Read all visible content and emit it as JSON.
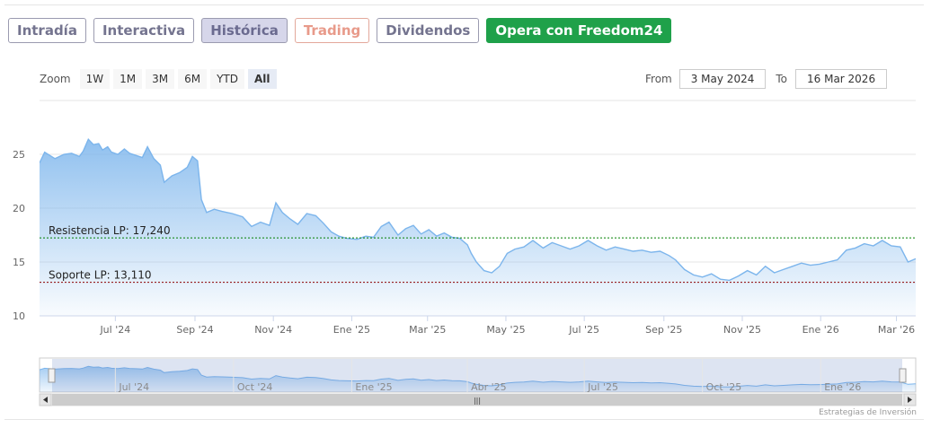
{
  "tabs": [
    {
      "label": "Intradía"
    },
    {
      "label": "Interactiva"
    },
    {
      "label": "Histórica",
      "active": true
    },
    {
      "label": "Trading"
    },
    {
      "label": "Dividendos"
    },
    {
      "label": "Opera con Freedom24"
    }
  ],
  "zoom": {
    "label": "Zoom",
    "buttons": [
      "1W",
      "1M",
      "3M",
      "6M",
      "YTD",
      "All"
    ],
    "selected": "All"
  },
  "range": {
    "from_label": "From",
    "from_value": "3 May 2024",
    "to_label": "To",
    "to_value": "16 Mar 2026"
  },
  "credit": "Estrategias de Inversión",
  "colors": {
    "line": "#7cb5ec",
    "resistance": "#008000",
    "support": "#8b0000",
    "cta": "#1fa14a",
    "tab_active_bg": "#d6d6ea"
  },
  "chart_data": {
    "type": "area",
    "y_ticks": [
      "10",
      "15",
      "20",
      "25"
    ],
    "ylim": [
      10,
      30
    ],
    "x_tick_labels": [
      "Jul '24",
      "Sep '24",
      "Nov '24",
      "Ene '25",
      "Mar '25",
      "May '25",
      "Jul '25",
      "Sep '25",
      "Nov '25",
      "Ene '26",
      "Mar '26"
    ],
    "x_tick_dates": [
      "2024-07-01",
      "2024-09-01",
      "2024-11-01",
      "2025-01-01",
      "2025-03-01",
      "2025-05-01",
      "2025-07-01",
      "2025-09-01",
      "2025-11-01",
      "2026-01-01",
      "2026-03-01"
    ],
    "xlim": [
      "2024-05-03",
      "2026-03-16"
    ],
    "series": [
      {
        "x": [
          "2024-05-03",
          "2024-05-07",
          "2024-05-15",
          "2024-05-22",
          "2024-05-28",
          "2024-06-03",
          "2024-06-06",
          "2024-06-10",
          "2024-06-14",
          "2024-06-18",
          "2024-06-21",
          "2024-06-25",
          "2024-06-28",
          "2024-07-03",
          "2024-07-08",
          "2024-07-12",
          "2024-07-17",
          "2024-07-22",
          "2024-07-26",
          "2024-07-31",
          "2024-08-05",
          "2024-08-08",
          "2024-08-14",
          "2024-08-20",
          "2024-08-26",
          "2024-08-30",
          "2024-09-03",
          "2024-09-06",
          "2024-09-10",
          "2024-09-16",
          "2024-09-22",
          "2024-09-30",
          "2024-10-08",
          "2024-10-15",
          "2024-10-22",
          "2024-10-29",
          "2024-11-03",
          "2024-11-08",
          "2024-11-14",
          "2024-11-20",
          "2024-11-27",
          "2024-12-04",
          "2024-12-10",
          "2024-12-16",
          "2024-12-22",
          "2024-12-28",
          "2025-01-05",
          "2025-01-12",
          "2025-01-18",
          "2025-01-24",
          "2025-01-30",
          "2025-02-06",
          "2025-02-12",
          "2025-02-18",
          "2025-02-24",
          "2025-03-02",
          "2025-03-08",
          "2025-03-14",
          "2025-03-20",
          "2025-03-26",
          "2025-04-01",
          "2025-04-04",
          "2025-04-08",
          "2025-04-14",
          "2025-04-20",
          "2025-04-26",
          "2025-05-02",
          "2025-05-08",
          "2025-05-15",
          "2025-05-22",
          "2025-05-30",
          "2025-06-06",
          "2025-06-13",
          "2025-06-20",
          "2025-06-27",
          "2025-07-04",
          "2025-07-11",
          "2025-07-18",
          "2025-07-25",
          "2025-08-01",
          "2025-08-08",
          "2025-08-15",
          "2025-08-22",
          "2025-08-29",
          "2025-09-05",
          "2025-09-10",
          "2025-09-17",
          "2025-09-24",
          "2025-10-01",
          "2025-10-08",
          "2025-10-15",
          "2025-10-22",
          "2025-10-29",
          "2025-11-05",
          "2025-11-12",
          "2025-11-19",
          "2025-11-26",
          "2025-12-03",
          "2025-12-10",
          "2025-12-17",
          "2025-12-24",
          "2025-12-31",
          "2026-01-07",
          "2026-01-14",
          "2026-01-21",
          "2026-01-28",
          "2026-02-04",
          "2026-02-11",
          "2026-02-18",
          "2026-02-25",
          "2026-03-04",
          "2026-03-10",
          "2026-03-16"
        ],
        "values": [
          24.2,
          25.2,
          24.6,
          25.0,
          25.1,
          24.8,
          25.3,
          26.4,
          25.9,
          26.0,
          25.4,
          25.7,
          25.2,
          25.0,
          25.5,
          25.1,
          24.9,
          24.7,
          25.7,
          24.6,
          24.0,
          22.4,
          23.0,
          23.3,
          23.8,
          24.8,
          24.4,
          20.8,
          19.6,
          19.9,
          19.7,
          19.5,
          19.2,
          18.3,
          18.7,
          18.4,
          20.5,
          19.6,
          19.0,
          18.5,
          19.5,
          19.3,
          18.6,
          17.8,
          17.4,
          17.2,
          17.1,
          17.4,
          17.3,
          18.3,
          18.7,
          17.5,
          18.1,
          18.4,
          17.6,
          18.0,
          17.4,
          17.7,
          17.3,
          17.2,
          16.6,
          15.8,
          15.0,
          14.2,
          14.0,
          14.6,
          15.8,
          16.2,
          16.4,
          17.0,
          16.3,
          16.8,
          16.5,
          16.2,
          16.5,
          17.0,
          16.5,
          16.1,
          16.4,
          16.2,
          16.0,
          16.1,
          15.9,
          16.0,
          15.6,
          15.2,
          14.3,
          13.8,
          13.6,
          13.9,
          13.4,
          13.3,
          13.7,
          14.2,
          13.8,
          14.6,
          14.0,
          14.3,
          14.6,
          14.9,
          14.7,
          14.8,
          15.0,
          15.2,
          16.1,
          16.3,
          16.7,
          16.5,
          17.0,
          16.5,
          16.4,
          15.0,
          15.3
        ]
      }
    ],
    "annotations": [
      {
        "label": "Resistencia LP: 17,240",
        "value": 17.24
      },
      {
        "label": "Soporte LP: 13,110",
        "value": 13.11
      }
    ],
    "navigator": {
      "x_tick_labels": [
        "Jul '24",
        "Oct '24",
        "Ene '25",
        "Abr '25",
        "Jul '25",
        "Oct '25",
        "Ene '26"
      ],
      "x_tick_dates": [
        "2024-07-01",
        "2024-10-01",
        "2025-01-01",
        "2025-04-01",
        "2025-07-01",
        "2025-10-01",
        "2026-01-01"
      ]
    },
    "grid": true,
    "legend": "none"
  }
}
